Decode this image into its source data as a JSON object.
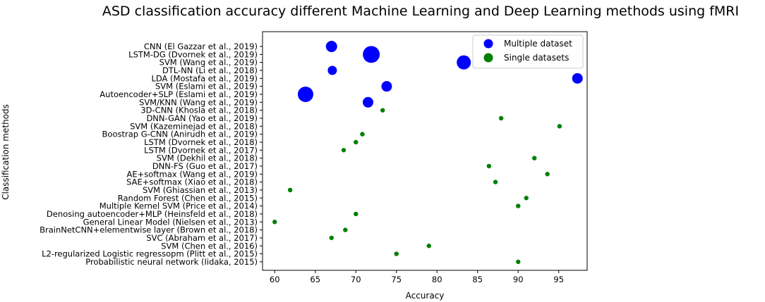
{
  "chart_data": {
    "type": "scatter",
    "title": "ASD classification accuracy different Machine Learning and Deep Learning methods using fMRI",
    "xlabel": "Accuracy",
    "ylabel": "Classification methods",
    "xlim": [
      58.5,
      98.5
    ],
    "xticks": [
      60,
      65,
      70,
      75,
      80,
      85,
      90,
      95
    ],
    "grid": false,
    "legend_position": "top-right",
    "categories": [
      "CNN (El Gazzar et al., 2019)",
      "LSTM-DG (Dvornek et al., 2019)",
      "SVM (Wang et al., 2019)",
      "DTL-NN (Li et al., 2018)",
      "LDA (Mostafa et al., 2019)",
      "SVM (Eslami et al., 2019)",
      "Autoencoder+SLP (Eslami et al., 2019)",
      "SVM/KNN (Wang et al., 2019)",
      "3D-CNN (Khosla et al., 2018)",
      "DNN-GAN (Yao et al., 2019)",
      "SVM (Kazeminejad et al., 2018)",
      "Boostrap G-CNN (Anirudh et al., 2019)",
      "LSTM (Dvornek et al., 2018)",
      "LSTM (Dvornek et al., 2017)",
      "SVM (Dekhil et al., 2018)",
      "DNN-FS (Guo et al., 2017)",
      "AE+softmax (Wang et al., 2019)",
      "SAE+softmax (Xiao et al., 2018)",
      "SVM (Ghiassian et al., 2013)",
      "Random Forest (Chen et al., 2015)",
      "Multiple Kernel SVM (Price et al., 2014)",
      "Denosing autoencoder+MLP (Heinsfeld et al., 2018)",
      "General Linear Model (Nielsen et al., 2013)",
      "BrainNetCNN+elementwise layer (Brown et al., 2018)",
      "SVC (Abraham et al., 2017)",
      "SVM (Chen et al., 2016)",
      "L2-regularized Logistic regressopm (Plitt et al., 2015)",
      "Probabilistic neural network (Iidaka, 2015)"
    ],
    "series": [
      {
        "name": "Multiple dataset",
        "color": "#0000ff",
        "marker": "large-circle",
        "points": [
          {
            "category": "CNN (El Gazzar et al., 2019)",
            "x": 67.0
          },
          {
            "category": "LSTM-DG (Dvornek et al., 2019)",
            "x": 71.9
          },
          {
            "category": "SVM (Wang et al., 2019)",
            "x": 83.3
          },
          {
            "category": "DTL-NN (Li et al., 2018)",
            "x": 67.1
          },
          {
            "category": "LDA (Mostafa et al., 2019)",
            "x": 97.3
          },
          {
            "category": "SVM (Eslami et al., 2019)",
            "x": 73.8
          },
          {
            "category": "Autoencoder+SLP (Eslami et al., 2019)",
            "x": 63.8
          },
          {
            "category": "SVM/KNN (Wang et al., 2019)",
            "x": 71.5
          }
        ],
        "sizes": [
          8,
          12,
          10,
          6.5,
          7.5,
          7.5,
          11,
          7.5
        ]
      },
      {
        "name": "Single datasets",
        "color": "#008000",
        "marker": "small-circle",
        "points": [
          {
            "category": "3D-CNN (Khosla et al., 2018)",
            "x": 73.3
          },
          {
            "category": "DNN-GAN (Yao et al., 2019)",
            "x": 87.9
          },
          {
            "category": "SVM (Kazeminejad et al., 2018)",
            "x": 95.1
          },
          {
            "category": "Boostrap G-CNN (Anirudh et al., 2019)",
            "x": 70.8
          },
          {
            "category": "LSTM (Dvornek et al., 2018)",
            "x": 70.0
          },
          {
            "category": "LSTM (Dvornek et al., 2017)",
            "x": 68.5
          },
          {
            "category": "SVM (Dekhil et al., 2018)",
            "x": 92.0
          },
          {
            "category": "DNN-FS (Guo et al., 2017)",
            "x": 86.4
          },
          {
            "category": "AE+softmax (Wang et al., 2019)",
            "x": 93.6
          },
          {
            "category": "SAE+softmax (Xiao et al., 2018)",
            "x": 87.2
          },
          {
            "category": "SVM (Ghiassian et al., 2013)",
            "x": 61.9
          },
          {
            "category": "Random Forest (Chen et al., 2015)",
            "x": 91.0
          },
          {
            "category": "Multiple Kernel SVM (Price et al., 2014)",
            "x": 90.0
          },
          {
            "category": "Denosing autoencoder+MLP (Heinsfeld et al., 2018)",
            "x": 70.0
          },
          {
            "category": "General Linear Model (Nielsen et al., 2013)",
            "x": 60.0
          },
          {
            "category": "BrainNetCNN+elementwise layer (Brown et al., 2018)",
            "x": 68.7
          },
          {
            "category": "SVC (Abraham et al., 2017)",
            "x": 67.0
          },
          {
            "category": "SVM (Chen et al., 2016)",
            "x": 79.0
          },
          {
            "category": "L2-regularized Logistic regressopm (Plitt et al., 2015)",
            "x": 75.0
          },
          {
            "category": "Probabilistic neural network (Iidaka, 2015)",
            "x": 90.0
          }
        ]
      }
    ]
  }
}
